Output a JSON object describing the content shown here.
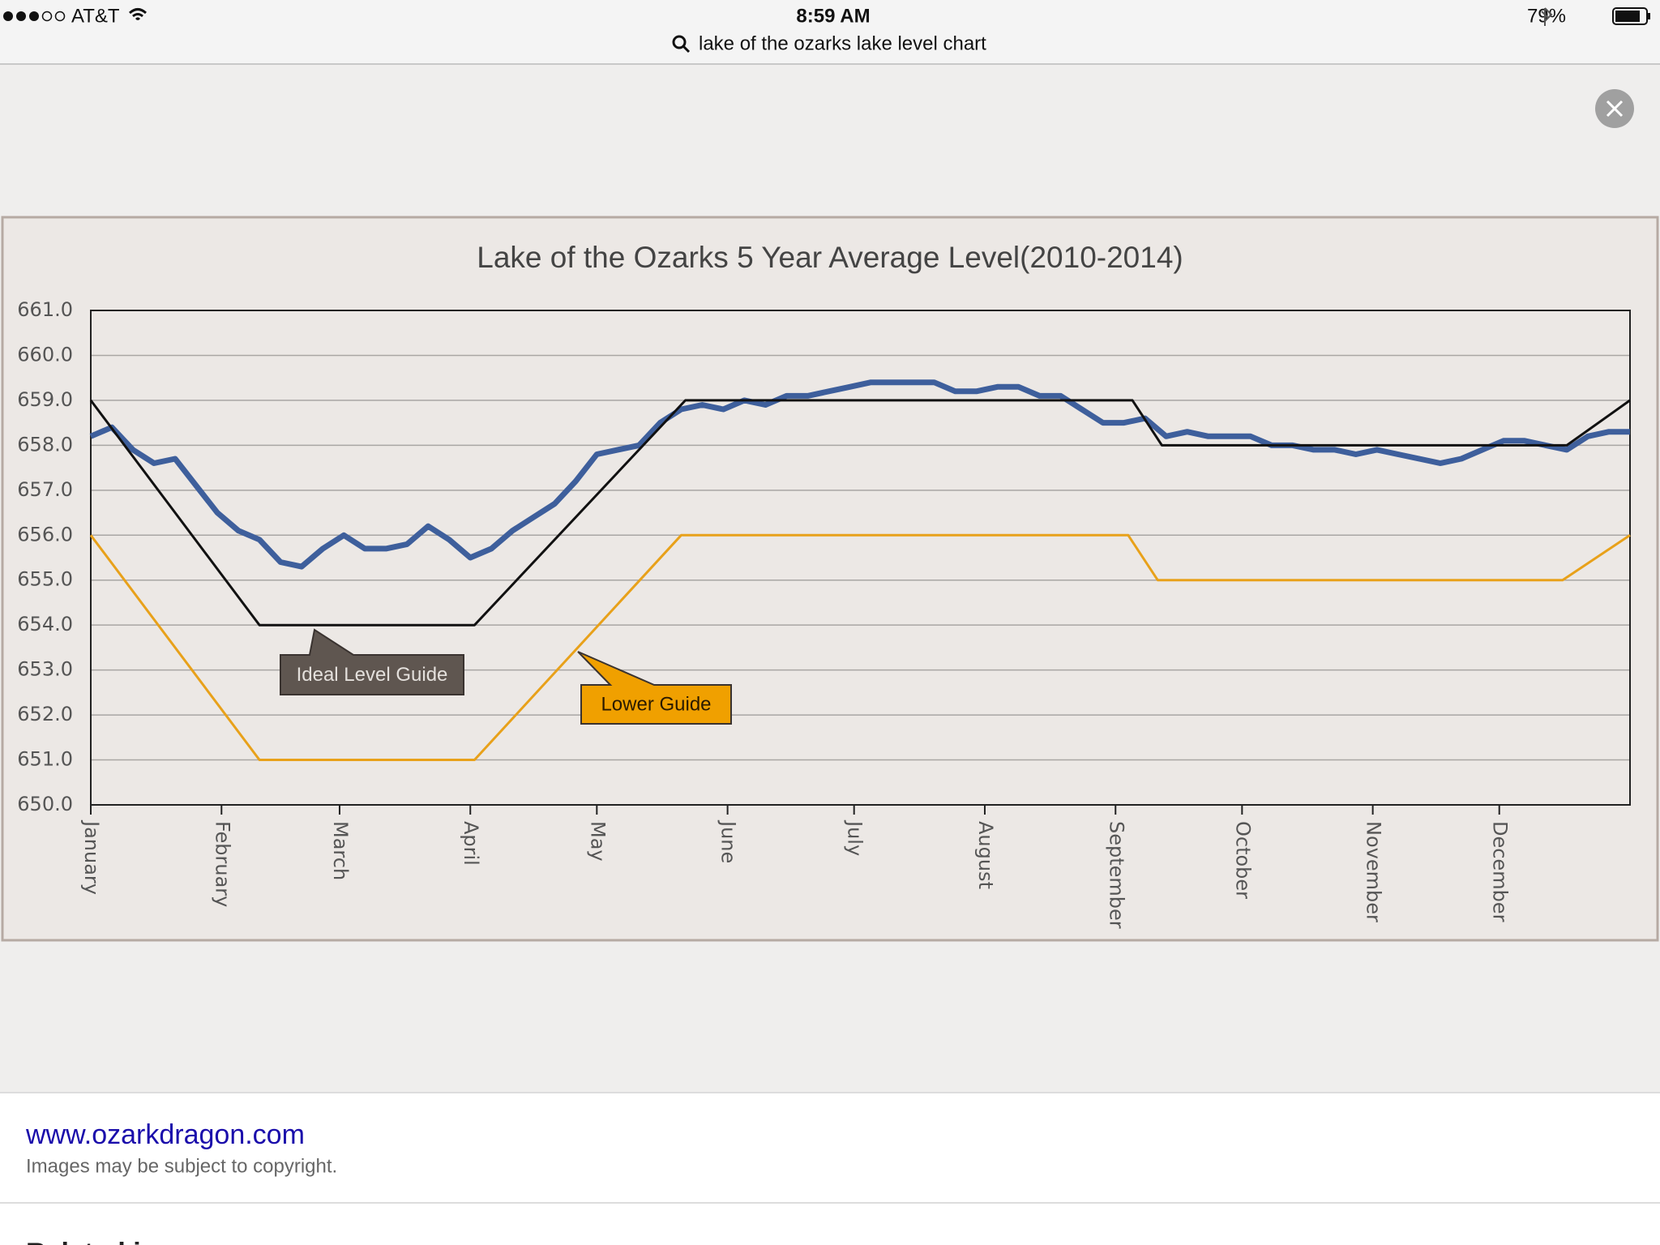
{
  "status_bar": {
    "carrier": "AT&T",
    "time": "8:59 AM",
    "battery": "79%"
  },
  "search": {
    "query": "lake of the ozarks lake level chart"
  },
  "chart_data": {
    "type": "line",
    "title": "Lake of the Ozarks 5 Year Average Level(2010-2014)",
    "xlim": [
      0,
      365
    ],
    "xticks": [
      {
        "value": 0,
        "label": "January"
      },
      {
        "value": 31,
        "label": "February"
      },
      {
        "value": 59,
        "label": "March"
      },
      {
        "value": 90,
        "label": "April"
      },
      {
        "value": 120,
        "label": "May"
      },
      {
        "value": 151,
        "label": "June"
      },
      {
        "value": 181,
        "label": "July"
      },
      {
        "value": 212,
        "label": "August"
      },
      {
        "value": 243,
        "label": "September"
      },
      {
        "value": 273,
        "label": "October"
      },
      {
        "value": 304,
        "label": "November"
      },
      {
        "value": 334,
        "label": "December"
      }
    ],
    "ylim": [
      650,
      661
    ],
    "yticks": [
      {
        "value": 650,
        "label": "650.0"
      },
      {
        "value": 651,
        "label": "651.0"
      },
      {
        "value": 652,
        "label": "652.0"
      },
      {
        "value": 653,
        "label": "653.0"
      },
      {
        "value": 654,
        "label": "654.0"
      },
      {
        "value": 655,
        "label": "655.0"
      },
      {
        "value": 656,
        "label": "656.0"
      },
      {
        "value": 657,
        "label": "657.0"
      },
      {
        "value": 658,
        "label": "658.0"
      },
      {
        "value": 659,
        "label": "659.0"
      },
      {
        "value": 660,
        "label": "660.0"
      },
      {
        "value": 661,
        "label": "661.0"
      }
    ],
    "grid": true,
    "series": [
      {
        "color": "#3e5f9c",
        "x": [
          0,
          5,
          10,
          15,
          20,
          25,
          30,
          35,
          40,
          45,
          50,
          55,
          60,
          65,
          70,
          75,
          80,
          85,
          90,
          95,
          100,
          105,
          110,
          115,
          120,
          125,
          130,
          135,
          140,
          145,
          150,
          155,
          160,
          165,
          170,
          175,
          180,
          185,
          190,
          195,
          200,
          205,
          210,
          215,
          220,
          225,
          230,
          235,
          240,
          245,
          250,
          255,
          260,
          265,
          270,
          275,
          280,
          285,
          290,
          295,
          300,
          305,
          310,
          315,
          320,
          325,
          330,
          335,
          340,
          345,
          350,
          355,
          360,
          365
        ],
        "values": [
          658.2,
          658.4,
          657.9,
          657.6,
          657.7,
          657.1,
          656.5,
          656.1,
          655.9,
          655.4,
          655.3,
          655.7,
          656.0,
          655.7,
          655.7,
          655.8,
          656.2,
          655.9,
          655.5,
          655.7,
          656.1,
          656.4,
          656.7,
          657.2,
          657.8,
          657.9,
          658.0,
          658.5,
          658.8,
          658.9,
          658.8,
          659.0,
          658.9,
          659.1,
          659.1,
          659.2,
          659.3,
          659.4,
          659.4,
          659.4,
          659.4,
          659.2,
          659.2,
          659.3,
          659.3,
          659.1,
          659.1,
          658.8,
          658.5,
          658.5,
          658.6,
          658.2,
          658.3,
          658.2,
          658.2,
          658.2,
          658.0,
          658.0,
          657.9,
          657.9,
          657.8,
          657.9,
          657.8,
          657.7,
          657.6,
          657.7,
          657.9,
          658.1,
          658.1,
          658.0,
          657.9,
          658.2,
          658.3,
          658.3
        ]
      },
      {
        "name": "Ideal Level Guide",
        "color": "#111111",
        "x": [
          0,
          40,
          91,
          141,
          247,
          254,
          350,
          365
        ],
        "values": [
          659,
          654,
          654,
          659,
          659,
          658,
          658,
          659
        ]
      },
      {
        "name": "Lower Guide",
        "color": "#e8a11a",
        "x": [
          0,
          40,
          91,
          140,
          246,
          253,
          349,
          365
        ],
        "values": [
          656,
          651,
          651,
          656,
          656,
          655,
          655,
          656
        ]
      }
    ]
  },
  "source": {
    "site": "www.ozarkdragon.com",
    "note": "Images may be subject to copyright.",
    "next_section": "Related images"
  }
}
